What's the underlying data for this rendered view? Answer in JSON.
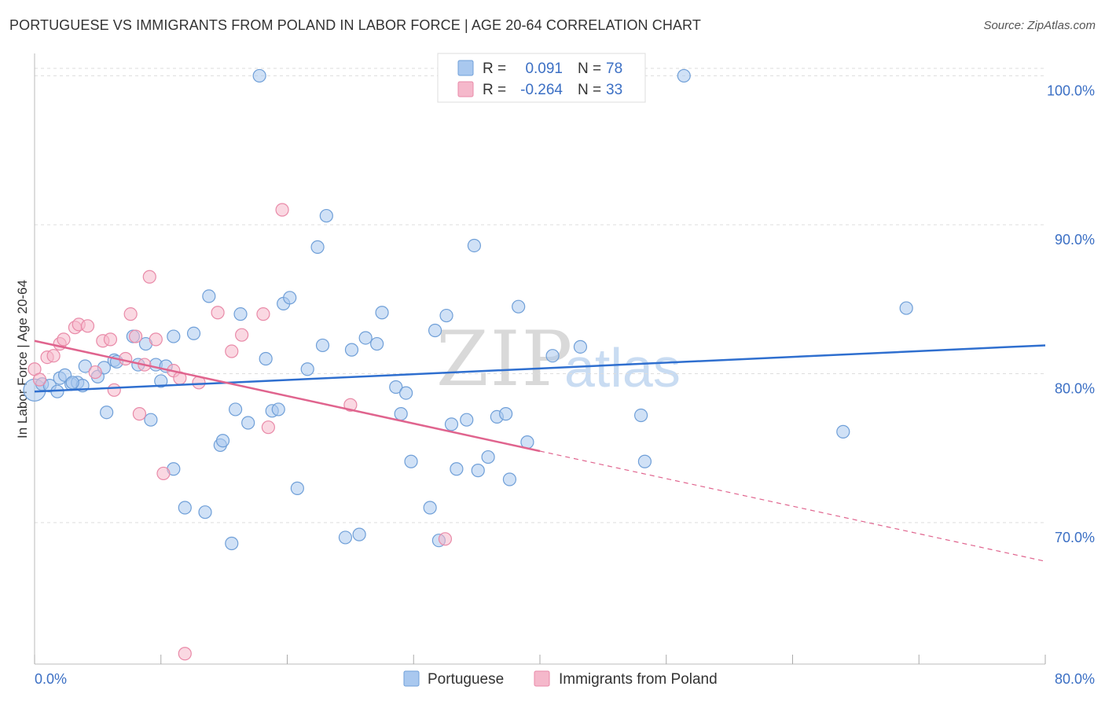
{
  "header": {
    "title": "PORTUGUESE VS IMMIGRANTS FROM POLAND IN LABOR FORCE | AGE 20-64 CORRELATION CHART",
    "source": "Source: ZipAtlas.com"
  },
  "watermark": {
    "zip": "ZIP",
    "atlas": "atlas"
  },
  "legend": {
    "rows": [
      {
        "r_label": "R =",
        "r_value": "0.091",
        "n_label": "N =",
        "n_value": "78",
        "color": "#a9c8ef"
      },
      {
        "r_label": "R =",
        "r_value": "-0.264",
        "n_label": "N =",
        "n_value": "33",
        "color": "#f5b8cb"
      }
    ]
  },
  "bottom_legend": [
    {
      "label": "Portuguese",
      "color": "#a9c8ef"
    },
    {
      "label": "Immigrants from Poland",
      "color": "#f5b8cb"
    }
  ],
  "colors": {
    "blue_fill": "#a9c8ef",
    "blue_stroke": "#6f9fd8",
    "blue_line": "#2f6fcf",
    "pink_fill": "#f5b8cb",
    "pink_stroke": "#e98aa8",
    "pink_line": "#e0648e",
    "grid": "#dddddd",
    "tick_text": "#3b6fc4"
  },
  "chart_data": {
    "type": "scatter",
    "title": "PORTUGUESE VS IMMIGRANTS FROM POLAND IN LABOR FORCE | AGE 20-64 CORRELATION CHART",
    "xlabel": "",
    "ylabel": "In Labor Force | Age 20-64",
    "xlim": [
      0,
      80
    ],
    "ylim": [
      60.5,
      101.5
    ],
    "x_tick_labels": [
      "0.0%",
      "80.0%"
    ],
    "y_ticks": [
      70,
      80,
      90,
      100
    ],
    "y_tick_labels": [
      "70.0%",
      "80.0%",
      "90.0%",
      "100.0%"
    ],
    "grid": true,
    "legend_position": "top-center",
    "series": [
      {
        "name": "Portuguese",
        "r": 0.091,
        "n": 78,
        "trend": {
          "x": [
            0,
            80
          ],
          "y": [
            78.8,
            81.9
          ]
        },
        "points": [
          [
            0.0,
            78.9
          ],
          [
            0.6,
            79.3
          ],
          [
            1.2,
            79.2
          ],
          [
            1.8,
            78.8
          ],
          [
            2.0,
            79.7
          ],
          [
            2.4,
            79.9
          ],
          [
            2.9,
            79.3
          ],
          [
            3.4,
            79.4
          ],
          [
            3.8,
            79.2
          ],
          [
            4.0,
            80.5
          ],
          [
            5.0,
            79.8
          ],
          [
            5.5,
            80.4
          ],
          [
            5.7,
            77.4
          ],
          [
            6.3,
            80.9
          ],
          [
            7.8,
            82.5
          ],
          [
            8.2,
            80.6
          ],
          [
            8.8,
            82.0
          ],
          [
            9.2,
            76.9
          ],
          [
            9.6,
            80.6
          ],
          [
            10.0,
            79.5
          ],
          [
            10.4,
            80.5
          ],
          [
            11.0,
            82.5
          ],
          [
            11.0,
            73.6
          ],
          [
            11.9,
            71.0
          ],
          [
            12.6,
            82.7
          ],
          [
            13.5,
            70.7
          ],
          [
            13.8,
            85.2
          ],
          [
            14.7,
            75.2
          ],
          [
            14.9,
            75.5
          ],
          [
            15.6,
            68.6
          ],
          [
            15.9,
            77.6
          ],
          [
            16.3,
            84.0
          ],
          [
            16.9,
            76.7
          ],
          [
            17.8,
            100.0
          ],
          [
            18.3,
            81.0
          ],
          [
            18.8,
            77.5
          ],
          [
            19.3,
            77.6
          ],
          [
            19.7,
            84.7
          ],
          [
            20.2,
            85.1
          ],
          [
            20.8,
            72.3
          ],
          [
            21.6,
            80.3
          ],
          [
            22.4,
            88.5
          ],
          [
            22.8,
            81.9
          ],
          [
            23.1,
            90.6
          ],
          [
            24.6,
            69.0
          ],
          [
            25.1,
            81.6
          ],
          [
            25.7,
            69.2
          ],
          [
            26.2,
            82.4
          ],
          [
            27.1,
            82.0
          ],
          [
            27.5,
            84.1
          ],
          [
            28.6,
            79.1
          ],
          [
            29.0,
            77.3
          ],
          [
            29.4,
            78.7
          ],
          [
            29.8,
            74.1
          ],
          [
            31.3,
            71.0
          ],
          [
            31.7,
            82.9
          ],
          [
            32.0,
            68.8
          ],
          [
            32.6,
            83.9
          ],
          [
            33.0,
            76.6
          ],
          [
            33.4,
            73.6
          ],
          [
            34.2,
            76.9
          ],
          [
            34.8,
            88.6
          ],
          [
            35.1,
            73.5
          ],
          [
            35.9,
            74.4
          ],
          [
            36.6,
            77.1
          ],
          [
            37.3,
            77.3
          ],
          [
            37.6,
            72.9
          ],
          [
            38.3,
            84.5
          ],
          [
            39.0,
            75.4
          ],
          [
            41.0,
            81.2
          ],
          [
            43.2,
            81.8
          ],
          [
            48.0,
            77.2
          ],
          [
            48.3,
            74.1
          ],
          [
            51.4,
            100.0
          ],
          [
            64.0,
            76.1
          ],
          [
            69.0,
            84.4
          ],
          [
            6.5,
            80.8
          ],
          [
            3.0,
            79.4
          ]
        ]
      },
      {
        "name": "Immigrants from Poland",
        "r": -0.264,
        "n": 33,
        "trend": {
          "x": [
            0,
            40
          ],
          "y": [
            82.2,
            74.8
          ]
        },
        "trend_dashed": {
          "x": [
            40,
            80
          ],
          "y": [
            74.8,
            67.4
          ]
        },
        "points": [
          [
            0.0,
            80.3
          ],
          [
            0.4,
            79.6
          ],
          [
            1.0,
            81.1
          ],
          [
            1.5,
            81.2
          ],
          [
            2.0,
            82.0
          ],
          [
            2.3,
            82.3
          ],
          [
            3.2,
            83.1
          ],
          [
            3.5,
            83.3
          ],
          [
            4.2,
            83.2
          ],
          [
            4.8,
            80.1
          ],
          [
            5.4,
            82.2
          ],
          [
            6.0,
            82.3
          ],
          [
            6.3,
            78.9
          ],
          [
            7.2,
            81.0
          ],
          [
            7.6,
            84.0
          ],
          [
            8.0,
            82.5
          ],
          [
            8.3,
            77.3
          ],
          [
            8.7,
            80.6
          ],
          [
            9.1,
            86.5
          ],
          [
            9.6,
            82.3
          ],
          [
            10.2,
            73.3
          ],
          [
            11.0,
            80.2
          ],
          [
            11.5,
            79.7
          ],
          [
            11.9,
            61.2
          ],
          [
            13.0,
            79.4
          ],
          [
            14.5,
            84.1
          ],
          [
            15.6,
            81.5
          ],
          [
            16.4,
            82.6
          ],
          [
            18.1,
            84.0
          ],
          [
            18.5,
            76.4
          ],
          [
            19.6,
            91.0
          ],
          [
            25.0,
            77.9
          ],
          [
            32.5,
            68.9
          ]
        ]
      }
    ]
  }
}
